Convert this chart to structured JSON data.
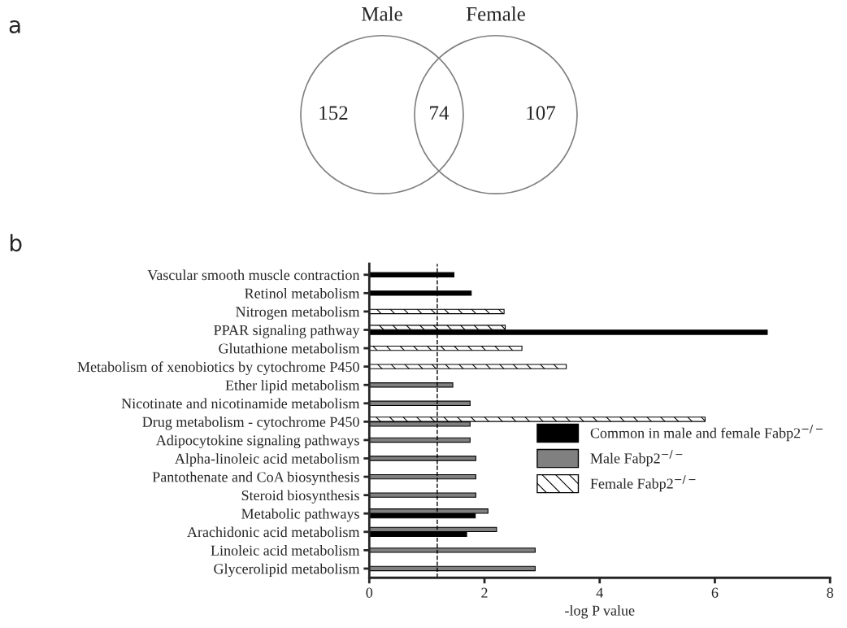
{
  "chart_data": [
    {
      "type": "other",
      "title": "a",
      "categories": [
        null,
        null,
        null
      ],
      "values": [
        152,
        74,
        107
      ],
      "data_labels": true,
      "annotations": [
        "Male",
        "Female"
      ]
    },
    {
      "type": "bar",
      "title": "b",
      "orientation": "horizontal",
      "xlabel": "-log P value",
      "categories": [
        "Vascular smooth muscle contraction",
        "Retinol metabolism",
        "Nitrogen metabolism",
        "PPAR signaling pathway",
        "Glutathione metabolism",
        "Metabolism of xenobiotics by cytochrome P450",
        "Ether lipid metabolism",
        "Nicotinate and nicotinamide metabolism",
        "Drug metabolism - cytochrome P450",
        "Adipocytokine signaling pathways",
        "Alpha-linoleic acid metabolism",
        "Pantothenate and CoA biosynthesis",
        "Steroid biosynthesis",
        "Metabolic pathways",
        "Arachidonic acid metabolism",
        "Linoleic acid metabolism",
        "Glycerolipid metabolism"
      ],
      "series": [
        {
          "name": "Common in male and female Fabp2$^{−/−}$",
          "color": "#000000",
          "values": [
            1.47,
            1.77,
            null,
            6.91,
            null,
            null,
            null,
            null,
            null,
            null,
            null,
            null,
            null,
            1.84,
            1.69,
            null,
            null
          ]
        },
        {
          "name": "Male Fabp2$^{−/−}$",
          "color": "#808080",
          "values": [
            null,
            null,
            null,
            null,
            null,
            null,
            1.45,
            1.75,
            1.75,
            1.75,
            1.85,
            1.85,
            1.85,
            2.06,
            2.21,
            2.88,
            2.88
          ]
        },
        {
          "name": "Female Fabp2$^{−/−}$",
          "color": "#000000",
          "values": [
            null,
            null,
            2.34,
            2.36,
            2.65,
            3.42,
            null,
            null,
            5.83,
            null,
            null,
            null,
            null,
            null,
            null,
            null,
            null
          ]
        }
      ],
      "xlim": [
        0,
        8
      ],
      "xticks": [
        0,
        2,
        4,
        6,
        8
      ],
      "grid": false,
      "legend": "right",
      "ref_lines": [
        {
          "axis": "x",
          "value": 1.18,
          "line_style": "dashed",
          "color": "#000000"
        }
      ]
    }
  ]
}
